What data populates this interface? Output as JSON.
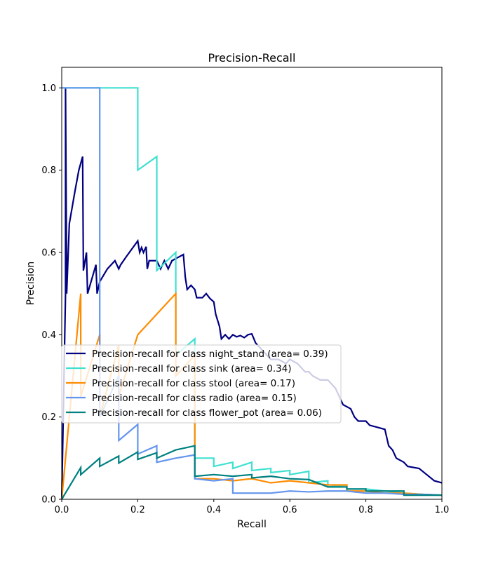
{
  "chart_data": {
    "type": "line",
    "title": "Precision-Recall",
    "xlabel": "Recall",
    "ylabel": "Precision",
    "xlim": [
      0,
      1
    ],
    "ylim": [
      0,
      1.05
    ],
    "xticks": [
      "0.0",
      "0.2",
      "0.4",
      "0.6",
      "0.8",
      "1.0"
    ],
    "yticks": [
      "0.0",
      "0.2",
      "0.4",
      "0.6",
      "0.8",
      "1.0"
    ],
    "grid": false,
    "legend_position": "center-left",
    "series": [
      {
        "name": "Precision-recall for class night_stand (area= 0.39)",
        "color": "#000080",
        "points": [
          [
            0,
            0
          ],
          [
            0.01,
            0.5
          ],
          [
            0.01,
            1.0
          ],
          [
            0.013,
            0.5
          ],
          [
            0.02,
            0.67
          ],
          [
            0.035,
            0.75
          ],
          [
            0.045,
            0.8
          ],
          [
            0.055,
            0.833
          ],
          [
            0.057,
            0.556
          ],
          [
            0.065,
            0.6
          ],
          [
            0.068,
            0.5
          ],
          [
            0.08,
            0.538
          ],
          [
            0.09,
            0.57
          ],
          [
            0.093,
            0.5
          ],
          [
            0.1,
            0.529
          ],
          [
            0.12,
            0.56
          ],
          [
            0.14,
            0.58
          ],
          [
            0.15,
            0.56
          ],
          [
            0.155,
            0.57
          ],
          [
            0.17,
            0.59
          ],
          [
            0.2,
            0.628
          ],
          [
            0.205,
            0.6
          ],
          [
            0.21,
            0.612
          ],
          [
            0.215,
            0.6
          ],
          [
            0.222,
            0.614
          ],
          [
            0.225,
            0.56
          ],
          [
            0.23,
            0.58
          ],
          [
            0.25,
            0.58
          ],
          [
            0.26,
            0.56
          ],
          [
            0.27,
            0.58
          ],
          [
            0.28,
            0.56
          ],
          [
            0.29,
            0.58
          ],
          [
            0.32,
            0.595
          ],
          [
            0.325,
            0.54
          ],
          [
            0.33,
            0.51
          ],
          [
            0.34,
            0.52
          ],
          [
            0.35,
            0.51
          ],
          [
            0.355,
            0.49
          ],
          [
            0.37,
            0.49
          ],
          [
            0.38,
            0.5
          ],
          [
            0.39,
            0.488
          ],
          [
            0.4,
            0.48
          ],
          [
            0.405,
            0.45
          ],
          [
            0.415,
            0.42
          ],
          [
            0.42,
            0.39
          ],
          [
            0.43,
            0.4
          ],
          [
            0.44,
            0.39
          ],
          [
            0.45,
            0.4
          ],
          [
            0.46,
            0.395
          ],
          [
            0.47,
            0.398
          ],
          [
            0.48,
            0.393
          ],
          [
            0.49,
            0.4
          ],
          [
            0.5,
            0.402
          ],
          [
            0.51,
            0.38
          ],
          [
            0.52,
            0.37
          ],
          [
            0.53,
            0.36
          ],
          [
            0.55,
            0.34
          ],
          [
            0.57,
            0.34
          ],
          [
            0.59,
            0.33
          ],
          [
            0.6,
            0.34
          ],
          [
            0.62,
            0.33
          ],
          [
            0.64,
            0.31
          ],
          [
            0.65,
            0.31
          ],
          [
            0.66,
            0.3
          ],
          [
            0.68,
            0.29
          ],
          [
            0.7,
            0.29
          ],
          [
            0.72,
            0.27
          ],
          [
            0.73,
            0.25
          ],
          [
            0.74,
            0.23
          ],
          [
            0.76,
            0.22
          ],
          [
            0.77,
            0.2
          ],
          [
            0.78,
            0.19
          ],
          [
            0.8,
            0.19
          ],
          [
            0.81,
            0.18
          ],
          [
            0.83,
            0.175
          ],
          [
            0.85,
            0.17
          ],
          [
            0.86,
            0.13
          ],
          [
            0.87,
            0.12
          ],
          [
            0.88,
            0.1
          ],
          [
            0.9,
            0.09
          ],
          [
            0.91,
            0.08
          ],
          [
            0.94,
            0.075
          ],
          [
            0.96,
            0.06
          ],
          [
            0.98,
            0.045
          ],
          [
            1.0,
            0.04
          ]
        ]
      },
      {
        "name": "Precision-recall for class sink (area= 0.34)",
        "color": "#40E0D0",
        "points": [
          [
            0,
            1.0
          ],
          [
            0.2,
            1.0
          ],
          [
            0.2,
            0.8
          ],
          [
            0.25,
            0.833
          ],
          [
            0.25,
            0.556
          ],
          [
            0.3,
            0.6
          ],
          [
            0.3,
            0.35
          ],
          [
            0.35,
            0.39
          ],
          [
            0.35,
            0.1
          ],
          [
            0.4,
            0.1
          ],
          [
            0.4,
            0.08
          ],
          [
            0.45,
            0.09
          ],
          [
            0.45,
            0.075
          ],
          [
            0.5,
            0.09
          ],
          [
            0.5,
            0.07
          ],
          [
            0.55,
            0.075
          ],
          [
            0.55,
            0.065
          ],
          [
            0.6,
            0.07
          ],
          [
            0.6,
            0.06
          ],
          [
            0.65,
            0.068
          ],
          [
            0.65,
            0.04
          ],
          [
            0.7,
            0.045
          ],
          [
            0.7,
            0.03
          ],
          [
            0.75,
            0.035
          ],
          [
            0.75,
            0.025
          ],
          [
            0.8,
            0.025
          ],
          [
            0.85,
            0.02
          ],
          [
            0.9,
            0.015
          ],
          [
            0.95,
            0.012
          ],
          [
            1.0,
            0.01
          ]
        ]
      },
      {
        "name": "Precision-recall for class stool (area= 0.17)",
        "color": "#FF8C00",
        "points": [
          [
            0,
            0
          ],
          [
            0.05,
            0.5
          ],
          [
            0.05,
            0.25
          ],
          [
            0.1,
            0.4
          ],
          [
            0.1,
            0.2
          ],
          [
            0.15,
            0.375
          ],
          [
            0.15,
            0.25
          ],
          [
            0.2,
            0.4
          ],
          [
            0.25,
            0.45
          ],
          [
            0.3,
            0.5
          ],
          [
            0.3,
            0.3
          ],
          [
            0.35,
            0.35
          ],
          [
            0.35,
            0.05
          ],
          [
            0.4,
            0.05
          ],
          [
            0.45,
            0.045
          ],
          [
            0.5,
            0.05
          ],
          [
            0.55,
            0.04
          ],
          [
            0.6,
            0.045
          ],
          [
            0.65,
            0.04
          ],
          [
            0.7,
            0.035
          ],
          [
            0.75,
            0.035
          ],
          [
            0.75,
            0.02
          ],
          [
            0.8,
            0.02
          ],
          [
            0.85,
            0.015
          ],
          [
            0.9,
            0.015
          ],
          [
            0.95,
            0.012
          ],
          [
            1.0,
            0.01
          ]
        ]
      },
      {
        "name": "Precision-recall for class radio (area= 0.15)",
        "color": "#6495ED",
        "points": [
          [
            0,
            1.0
          ],
          [
            0.1,
            1.0
          ],
          [
            0.1,
            0.2
          ],
          [
            0.15,
            0.3
          ],
          [
            0.15,
            0.143
          ],
          [
            0.2,
            0.182
          ],
          [
            0.2,
            0.11
          ],
          [
            0.25,
            0.13
          ],
          [
            0.25,
            0.09
          ],
          [
            0.3,
            0.1
          ],
          [
            0.35,
            0.108
          ],
          [
            0.35,
            0.05
          ],
          [
            0.4,
            0.045
          ],
          [
            0.45,
            0.05
          ],
          [
            0.45,
            0.015
          ],
          [
            0.5,
            0.015
          ],
          [
            0.55,
            0.015
          ],
          [
            0.6,
            0.02
          ],
          [
            0.65,
            0.018
          ],
          [
            0.7,
            0.02
          ],
          [
            0.75,
            0.02
          ],
          [
            0.8,
            0.015
          ],
          [
            0.85,
            0.015
          ],
          [
            0.9,
            0.012
          ],
          [
            0.95,
            0.012
          ],
          [
            1.0,
            0.01
          ]
        ]
      },
      {
        "name": "Precision-recall for class flower_pot (area= 0.06)",
        "color": "#008080",
        "points": [
          [
            0,
            0
          ],
          [
            0.05,
            0.077
          ],
          [
            0.05,
            0.06
          ],
          [
            0.1,
            0.1
          ],
          [
            0.1,
            0.08
          ],
          [
            0.15,
            0.105
          ],
          [
            0.15,
            0.088
          ],
          [
            0.2,
            0.115
          ],
          [
            0.2,
            0.097
          ],
          [
            0.25,
            0.113
          ],
          [
            0.25,
            0.1
          ],
          [
            0.3,
            0.12
          ],
          [
            0.35,
            0.13
          ],
          [
            0.35,
            0.056
          ],
          [
            0.4,
            0.06
          ],
          [
            0.45,
            0.056
          ],
          [
            0.5,
            0.06
          ],
          [
            0.5,
            0.052
          ],
          [
            0.55,
            0.056
          ],
          [
            0.6,
            0.05
          ],
          [
            0.65,
            0.048
          ],
          [
            0.7,
            0.03
          ],
          [
            0.75,
            0.03
          ],
          [
            0.75,
            0.025
          ],
          [
            0.8,
            0.025
          ],
          [
            0.8,
            0.02
          ],
          [
            0.9,
            0.02
          ],
          [
            0.9,
            0.01
          ],
          [
            1.0,
            0.01
          ]
        ]
      }
    ]
  }
}
